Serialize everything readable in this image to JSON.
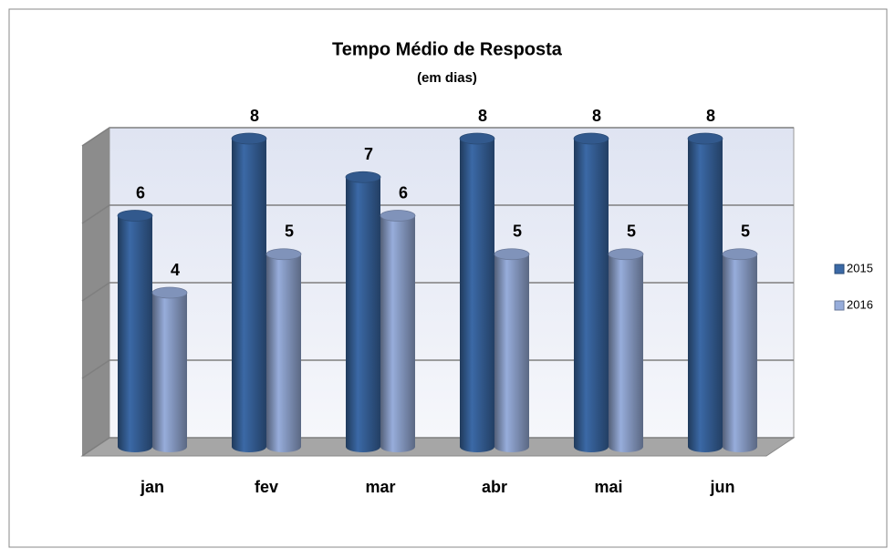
{
  "chart_data": {
    "type": "bar3d",
    "title": "Tempo Médio de Resposta",
    "subtitle": "(em dias)",
    "categories": [
      "jan",
      "fev",
      "mar",
      "abr",
      "mai",
      "jun"
    ],
    "series": [
      {
        "name": "2015",
        "color": "#3b69a6",
        "values": [
          6,
          8,
          7,
          8,
          8,
          8
        ]
      },
      {
        "name": "2016",
        "color": "#97addb",
        "values": [
          4,
          5,
          6,
          5,
          5,
          5
        ]
      }
    ],
    "ylim": [
      0,
      8
    ],
    "yticks": [
      0,
      2,
      4,
      6,
      8
    ],
    "grid": true,
    "legend": "right"
  }
}
